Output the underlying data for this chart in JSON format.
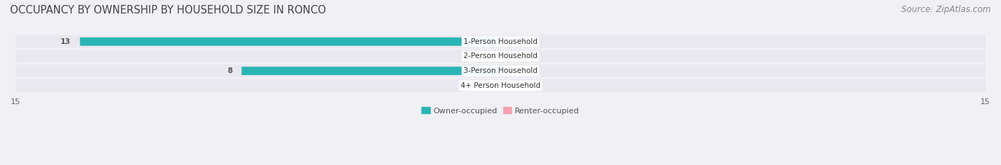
{
  "title": "OCCUPANCY BY OWNERSHIP BY HOUSEHOLD SIZE IN RONCO",
  "source": "Source: ZipAtlas.com",
  "categories": [
    "1-Person Household",
    "2-Person Household",
    "3-Person Household",
    "4+ Person Household"
  ],
  "owner_values": [
    13,
    0,
    8,
    0
  ],
  "renter_values": [
    0,
    0,
    0,
    0
  ],
  "owner_color": "#2ab5b5",
  "renter_color": "#f4a0b0",
  "background_color": "#f0f0f5",
  "bar_bg_color": "#e8e8ee",
  "xlim": 15,
  "title_fontsize": 10.5,
  "source_fontsize": 8.5,
  "label_fontsize": 7.5,
  "tick_fontsize": 8,
  "legend_fontsize": 8
}
